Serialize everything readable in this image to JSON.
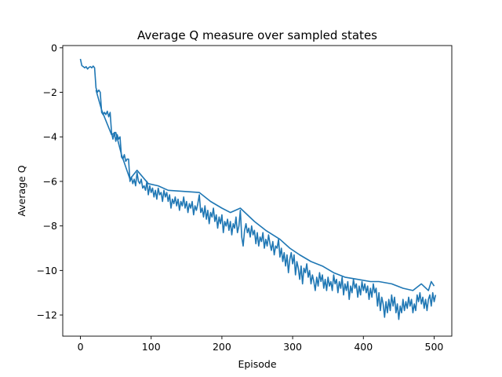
{
  "chart_data": {
    "type": "line",
    "title": "Average Q measure over sampled states",
    "xlabel": "Episode",
    "ylabel": "Average Q",
    "xlim": [
      -25,
      525
    ],
    "ylim": [
      -12.95,
      0.1
    ],
    "xticks": [
      0,
      100,
      200,
      300,
      400,
      500
    ],
    "yticks": [
      0,
      -2,
      -4,
      -6,
      -8,
      -10,
      -12
    ],
    "xtick_labels": [
      "0",
      "100",
      "200",
      "300",
      "400",
      "500"
    ],
    "ytick_labels": [
      "0",
      "−2",
      "−4",
      "−6",
      "−8",
      "−10",
      "−12"
    ],
    "grid": false,
    "legend": "none",
    "series": [
      {
        "color": "#1f77b4",
        "points": [
          [
            0,
            -0.5
          ],
          [
            2,
            -0.8
          ],
          [
            4,
            -0.85
          ],
          [
            6,
            -0.9
          ],
          [
            8,
            -0.85
          ],
          [
            10,
            -0.95
          ],
          [
            12,
            -0.88
          ],
          [
            14,
            -0.85
          ],
          [
            16,
            -0.9
          ],
          [
            18,
            -0.82
          ],
          [
            20,
            -0.9
          ],
          [
            22,
            -1.8
          ],
          [
            24,
            -2.0
          ],
          [
            26,
            -1.9
          ],
          [
            28,
            -2.0
          ],
          [
            30,
            -2.9
          ],
          [
            32,
            -3.0
          ],
          [
            34,
            -2.9
          ],
          [
            36,
            -3.0
          ],
          [
            38,
            -2.85
          ],
          [
            40,
            -3.1
          ],
          [
            42,
            -2.9
          ],
          [
            44,
            -3.8
          ],
          [
            46,
            -4.1
          ],
          [
            48,
            -3.8
          ],
          [
            50,
            -4.2
          ],
          [
            52,
            -3.9
          ],
          [
            54,
            -4.1
          ],
          [
            56,
            -4.0
          ],
          [
            58,
            -4.9
          ],
          [
            60,
            -5.0
          ],
          [
            62,
            -4.8
          ],
          [
            64,
            -5.1
          ],
          [
            66,
            -5.0
          ],
          [
            68,
            -5.0
          ],
          [
            70,
            -6.0
          ],
          [
            72,
            -5.8
          ],
          [
            74,
            -6.1
          ],
          [
            76,
            -5.9
          ],
          [
            78,
            -6.2
          ],
          [
            80,
            -5.6
          ],
          [
            82,
            -6.0
          ],
          [
            84,
            -6.1
          ],
          [
            86,
            -5.9
          ],
          [
            88,
            -6.3
          ],
          [
            90,
            -6.2
          ],
          [
            92,
            -6.4
          ],
          [
            94,
            -6.0
          ],
          [
            96,
            -6.6
          ],
          [
            98,
            -6.2
          ],
          [
            100,
            -6.5
          ],
          [
            102,
            -6.3
          ],
          [
            104,
            -6.7
          ],
          [
            106,
            -6.4
          ],
          [
            108,
            -6.8
          ],
          [
            110,
            -6.3
          ],
          [
            112,
            -6.6
          ],
          [
            114,
            -6.5
          ],
          [
            116,
            -6.9
          ],
          [
            118,
            -6.4
          ],
          [
            120,
            -6.7
          ],
          [
            122,
            -6.5
          ],
          [
            124,
            -6.9
          ],
          [
            126,
            -6.6
          ],
          [
            128,
            -7.2
          ],
          [
            130,
            -6.8
          ],
          [
            132,
            -7.0
          ],
          [
            134,
            -6.7
          ],
          [
            136,
            -7.1
          ],
          [
            138,
            -6.8
          ],
          [
            140,
            -7.3
          ],
          [
            142,
            -6.9
          ],
          [
            144,
            -7.1
          ],
          [
            146,
            -6.7
          ],
          [
            148,
            -7.2
          ],
          [
            150,
            -6.9
          ],
          [
            152,
            -7.4
          ],
          [
            154,
            -7.0
          ],
          [
            156,
            -7.2
          ],
          [
            158,
            -6.9
          ],
          [
            160,
            -7.5
          ],
          [
            162,
            -7.1
          ],
          [
            164,
            -7.3
          ],
          [
            166,
            -7.0
          ],
          [
            168,
            -6.6
          ],
          [
            170,
            -7.4
          ],
          [
            172,
            -7.2
          ],
          [
            174,
            -7.6
          ],
          [
            176,
            -7.1
          ],
          [
            178,
            -7.7
          ],
          [
            180,
            -7.3
          ],
          [
            182,
            -7.9
          ],
          [
            184,
            -7.4
          ],
          [
            186,
            -7.6
          ],
          [
            188,
            -7.2
          ],
          [
            190,
            -7.8
          ],
          [
            192,
            -7.5
          ],
          [
            194,
            -8.1
          ],
          [
            196,
            -7.6
          ],
          [
            198,
            -7.9
          ],
          [
            200,
            -7.5
          ],
          [
            202,
            -8.3
          ],
          [
            204,
            -7.8
          ],
          [
            206,
            -8.0
          ],
          [
            208,
            -7.7
          ],
          [
            210,
            -8.2
          ],
          [
            212,
            -7.8
          ],
          [
            214,
            -8.4
          ],
          [
            216,
            -7.9
          ],
          [
            218,
            -8.1
          ],
          [
            220,
            -7.6
          ],
          [
            222,
            -8.3
          ],
          [
            224,
            -8.0
          ],
          [
            226,
            -7.3
          ],
          [
            228,
            -8.5
          ],
          [
            230,
            -8.9
          ],
          [
            232,
            -8.2
          ],
          [
            234,
            -7.9
          ],
          [
            236,
            -8.3
          ],
          [
            238,
            -8.1
          ],
          [
            240,
            -8.5
          ],
          [
            242,
            -8.0
          ],
          [
            244,
            -8.4
          ],
          [
            246,
            -8.2
          ],
          [
            248,
            -8.8
          ],
          [
            250,
            -8.3
          ],
          [
            252,
            -8.9
          ],
          [
            254,
            -8.5
          ],
          [
            256,
            -8.7
          ],
          [
            258,
            -8.3
          ],
          [
            260,
            -9.0
          ],
          [
            262,
            -8.6
          ],
          [
            264,
            -8.9
          ],
          [
            266,
            -8.4
          ],
          [
            268,
            -8.8
          ],
          [
            270,
            -9.1
          ],
          [
            272,
            -8.7
          ],
          [
            274,
            -9.3
          ],
          [
            276,
            -8.9
          ],
          [
            278,
            -9.0
          ],
          [
            280,
            -8.6
          ],
          [
            282,
            -9.4
          ],
          [
            284,
            -9.0
          ],
          [
            286,
            -9.6
          ],
          [
            288,
            -9.2
          ],
          [
            290,
            -9.8
          ],
          [
            292,
            -9.3
          ],
          [
            294,
            -10.1
          ],
          [
            296,
            -9.5
          ],
          [
            298,
            -9.2
          ],
          [
            300,
            -9.7
          ],
          [
            302,
            -9.3
          ],
          [
            304,
            -10.2
          ],
          [
            306,
            -9.6
          ],
          [
            308,
            -9.9
          ],
          [
            310,
            -10.4
          ],
          [
            312,
            -9.8
          ],
          [
            314,
            -10.6
          ],
          [
            316,
            -9.9
          ],
          [
            318,
            -10.1
          ],
          [
            320,
            -9.7
          ],
          [
            322,
            -10.3
          ],
          [
            324,
            -10.0
          ],
          [
            326,
            -10.6
          ],
          [
            328,
            -10.2
          ],
          [
            330,
            -10.5
          ],
          [
            332,
            -10.9
          ],
          [
            334,
            -10.3
          ],
          [
            336,
            -10.7
          ],
          [
            338,
            -10.1
          ],
          [
            340,
            -10.5
          ],
          [
            342,
            -10.2
          ],
          [
            344,
            -10.8
          ],
          [
            346,
            -10.4
          ],
          [
            348,
            -10.9
          ],
          [
            350,
            -10.3
          ],
          [
            352,
            -10.7
          ],
          [
            354,
            -10.5
          ],
          [
            356,
            -10.9
          ],
          [
            358,
            -10.2
          ],
          [
            360,
            -10.6
          ],
          [
            362,
            -10.4
          ],
          [
            364,
            -11.0
          ],
          [
            366,
            -10.5
          ],
          [
            368,
            -10.8
          ],
          [
            370,
            -10.3
          ],
          [
            372,
            -11.1
          ],
          [
            374,
            -10.6
          ],
          [
            376,
            -10.9
          ],
          [
            378,
            -10.5
          ],
          [
            380,
            -11.3
          ],
          [
            382,
            -10.7
          ],
          [
            384,
            -11.0
          ],
          [
            386,
            -10.4
          ],
          [
            388,
            -10.8
          ],
          [
            390,
            -10.6
          ],
          [
            392,
            -11.2
          ],
          [
            394,
            -10.7
          ],
          [
            396,
            -11.1
          ],
          [
            398,
            -10.5
          ],
          [
            400,
            -10.9
          ],
          [
            402,
            -10.6
          ],
          [
            404,
            -11.0
          ],
          [
            406,
            -10.7
          ],
          [
            408,
            -11.3
          ],
          [
            410,
            -10.8
          ],
          [
            412,
            -11.2
          ],
          [
            414,
            -10.6
          ],
          [
            416,
            -11.0
          ],
          [
            418,
            -10.8
          ],
          [
            420,
            -11.6
          ],
          [
            422,
            -11.0
          ],
          [
            424,
            -11.8
          ],
          [
            426,
            -11.2
          ],
          [
            428,
            -11.5
          ],
          [
            430,
            -12.1
          ],
          [
            432,
            -11.4
          ],
          [
            434,
            -11.9
          ],
          [
            436,
            -11.3
          ],
          [
            438,
            -11.8
          ],
          [
            440,
            -11.1
          ],
          [
            442,
            -11.6
          ],
          [
            444,
            -11.2
          ],
          [
            446,
            -11.9
          ],
          [
            448,
            -11.5
          ],
          [
            450,
            -12.2
          ],
          [
            452,
            -11.6
          ],
          [
            454,
            -11.9
          ],
          [
            456,
            -11.3
          ],
          [
            458,
            -11.8
          ],
          [
            460,
            -11.4
          ],
          [
            462,
            -11.7
          ],
          [
            464,
            -11.2
          ],
          [
            466,
            -11.6
          ],
          [
            468,
            -11.3
          ],
          [
            470,
            -11.9
          ],
          [
            472,
            -11.5
          ],
          [
            474,
            -11.8
          ],
          [
            476,
            -11.1
          ],
          [
            478,
            -11.4
          ],
          [
            480,
            -11.0
          ],
          [
            482,
            -11.5
          ],
          [
            484,
            -11.2
          ],
          [
            486,
            -11.7
          ],
          [
            488,
            -11.3
          ],
          [
            490,
            -11.8
          ],
          [
            492,
            -11.3
          ],
          [
            494,
            -11.1
          ],
          [
            496,
            -11.6
          ],
          [
            498,
            -11.0
          ],
          [
            500,
            -11.4
          ],
          [
            502,
            -11.1
          ]
        ]
      },
      {
        "color": "#1f77b4",
        "points": [
          [
            22,
            -1.9
          ],
          [
            30,
            -2.8
          ],
          [
            44,
            -3.9
          ],
          [
            50,
            -3.8
          ],
          [
            58,
            -4.8
          ],
          [
            70,
            -5.9
          ],
          [
            80,
            -5.5
          ],
          [
            96,
            -6.1
          ],
          [
            110,
            -6.2
          ],
          [
            124,
            -6.4
          ],
          [
            168,
            -6.5
          ],
          [
            184,
            -6.9
          ],
          [
            200,
            -7.2
          ],
          [
            212,
            -7.4
          ],
          [
            226,
            -7.2
          ],
          [
            246,
            -7.8
          ],
          [
            262,
            -8.2
          ],
          [
            282,
            -8.6
          ],
          [
            296,
            -9.0
          ],
          [
            310,
            -9.3
          ],
          [
            326,
            -9.6
          ],
          [
            342,
            -9.8
          ],
          [
            358,
            -10.1
          ],
          [
            374,
            -10.3
          ],
          [
            392,
            -10.4
          ],
          [
            410,
            -10.5
          ],
          [
            422,
            -10.5
          ],
          [
            440,
            -10.6
          ],
          [
            456,
            -10.8
          ],
          [
            470,
            -10.9
          ],
          [
            482,
            -10.6
          ],
          [
            492,
            -10.9
          ],
          [
            496,
            -10.5
          ],
          [
            500,
            -10.7
          ]
        ]
      }
    ]
  }
}
